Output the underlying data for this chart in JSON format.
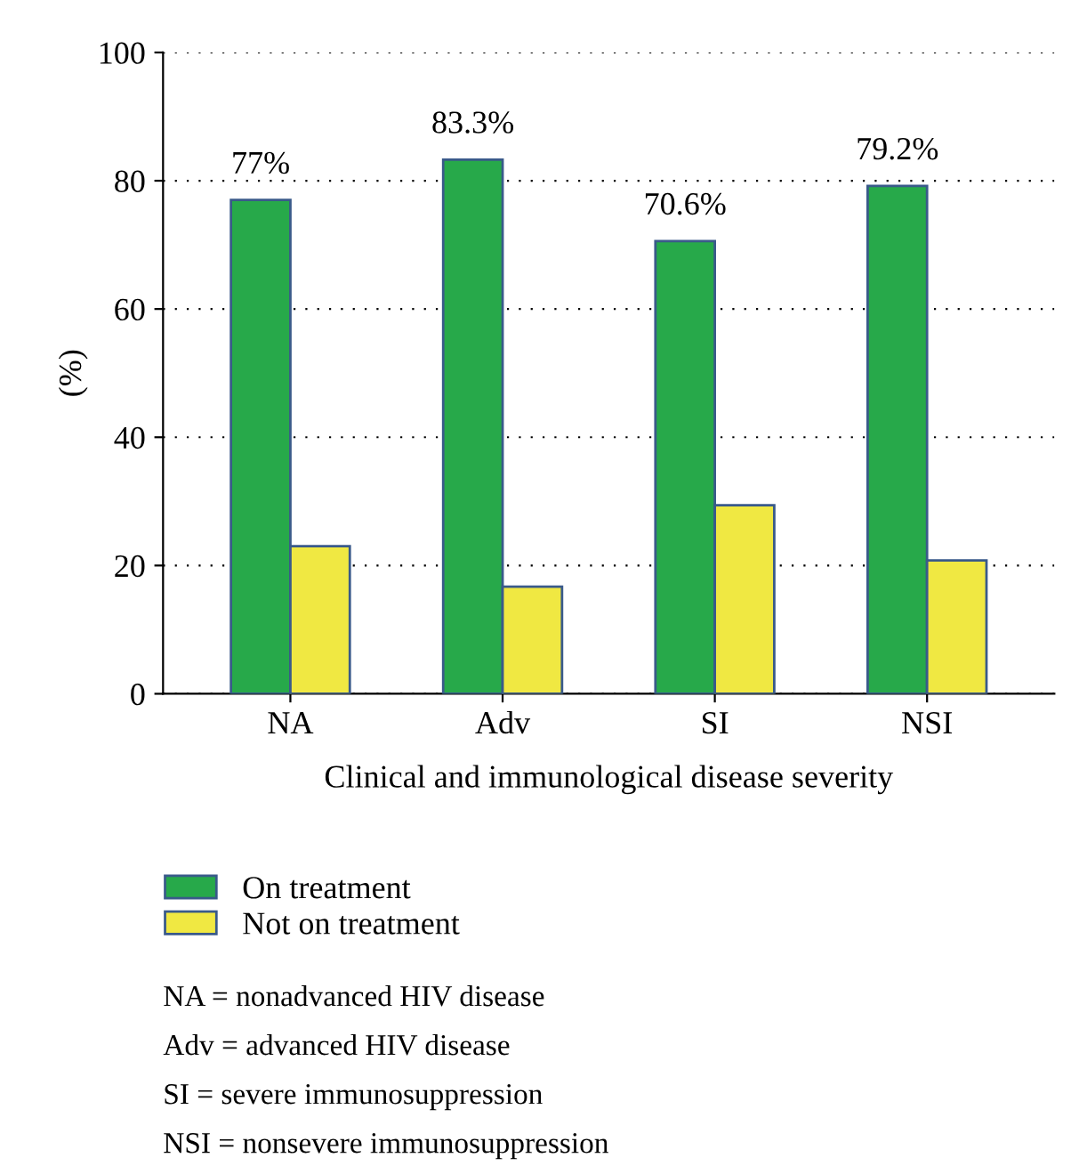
{
  "chart_data": {
    "type": "bar",
    "ylabel": "(%)",
    "xlabel": "Clinical and immunological disease severity",
    "categories": [
      "NA",
      "Adv",
      "SI",
      "NSI"
    ],
    "series": [
      {
        "name": "On treatment",
        "color": "#27a94a",
        "values": [
          77,
          83.3,
          70.6,
          79.2
        ],
        "value_labels": [
          "77%",
          "83.3%",
          "70.6%",
          "79.2%"
        ]
      },
      {
        "name": "Not on treatment",
        "color": "#f0e842",
        "values": [
          23,
          16.7,
          29.4,
          20.8
        ]
      }
    ],
    "ylim": [
      0,
      100
    ],
    "yticks": [
      0,
      20,
      40,
      60,
      80,
      100
    ],
    "grid": "y",
    "legend": "bottom",
    "annotations": [
      "NA = nonadvanced HIV disease",
      "Adv = advanced HIV disease",
      "SI = severe immunosuppression",
      "NSI = nonsevere immunosuppression"
    ]
  }
}
